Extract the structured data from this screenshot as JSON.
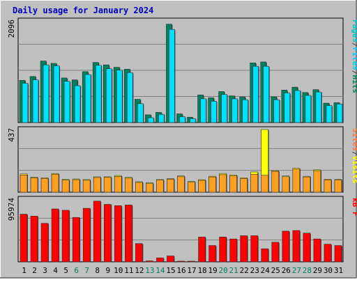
{
  "chart_data": [
    {
      "type": "bar",
      "title": "Daily usage for January 2024",
      "categories": [
        "1",
        "2",
        "3",
        "4",
        "5",
        "6",
        "7",
        "8",
        "9",
        "10",
        "11",
        "12",
        "13",
        "14",
        "15",
        "16",
        "17",
        "18",
        "19",
        "20",
        "21",
        "22",
        "23",
        "24",
        "25",
        "26",
        "27",
        "28",
        "29",
        "30",
        "31"
      ],
      "weekend_days": [
        "6",
        "7",
        "13",
        "14",
        "20",
        "21",
        "27",
        "28"
      ],
      "ymax_label": "2096",
      "ylim": [
        0,
        2096
      ],
      "series": [
        {
          "name": "Hits",
          "color": "#00805c",
          "values": [
            870,
            950,
            1270,
            1220,
            920,
            880,
            1050,
            1240,
            1190,
            1140,
            1100,
            480,
            160,
            210,
            2030,
            180,
            110,
            570,
            510,
            640,
            550,
            530,
            1230,
            1250,
            530,
            670,
            730,
            620,
            680,
            400,
            410
          ]
        },
        {
          "name": "Files",
          "color": "#00e0ff",
          "values": [
            810,
            880,
            1190,
            1170,
            850,
            760,
            990,
            1180,
            1110,
            1080,
            1030,
            390,
            100,
            170,
            1920,
            120,
            80,
            490,
            440,
            580,
            490,
            470,
            1160,
            1160,
            470,
            610,
            660,
            560,
            630,
            350,
            380
          ]
        }
      ],
      "legend_right": [
        "Pages",
        "/",
        "Files",
        "/",
        "Hits"
      ],
      "legend_colors": [
        "#00c8c8",
        "#404040",
        "#00d0f8",
        "#404040",
        "#00805c"
      ]
    },
    {
      "type": "bar",
      "categories": [
        "1",
        "2",
        "3",
        "4",
        "5",
        "6",
        "7",
        "8",
        "9",
        "10",
        "11",
        "12",
        "13",
        "14",
        "15",
        "16",
        "17",
        "18",
        "19",
        "20",
        "21",
        "22",
        "23",
        "24",
        "25",
        "26",
        "27",
        "28",
        "29",
        "30",
        "31"
      ],
      "ymax_label": "437",
      "ylim": [
        0,
        437
      ],
      "series": [
        {
          "name": "Visits",
          "color": "#ffff00",
          "values": [
            127,
            104,
            100,
            130,
            90,
            92,
            88,
            107,
            107,
            116,
            103,
            73,
            65,
            88,
            94,
            113,
            75,
            87,
            111,
            130,
            120,
            100,
            141,
            437,
            150,
            113,
            167,
            111,
            156,
            90,
            89
          ]
        },
        {
          "name": "Sites",
          "color": "#ffa020",
          "values": [
            120,
            100,
            96,
            125,
            85,
            87,
            83,
            102,
            103,
            110,
            98,
            68,
            60,
            84,
            90,
            108,
            70,
            82,
            106,
            122,
            114,
            95,
            125,
            118,
            145,
            108,
            160,
            106,
            150,
            86,
            85
          ]
        }
      ],
      "legend_right": [
        "Sites",
        "/",
        "Visits"
      ],
      "legend_colors": [
        "#ff8040",
        "#404040",
        "#ffff00"
      ]
    },
    {
      "type": "bar",
      "categories": [
        "1",
        "2",
        "3",
        "4",
        "5",
        "6",
        "7",
        "8",
        "9",
        "10",
        "11",
        "12",
        "13",
        "14",
        "15",
        "16",
        "17",
        "18",
        "19",
        "20",
        "21",
        "22",
        "23",
        "24",
        "25",
        "26",
        "27",
        "28",
        "29",
        "30",
        "31"
      ],
      "ymax_label": "95974",
      "ylim": [
        0,
        95974
      ],
      "series": [
        {
          "name": "kB F",
          "color": "#ff0000",
          "values": [
            73000,
            70000,
            59000,
            81000,
            79000,
            68000,
            82000,
            93000,
            88000,
            86000,
            87000,
            28000,
            1500,
            6000,
            9000,
            1000,
            1000,
            38000,
            25000,
            38000,
            35000,
            40000,
            40000,
            20000,
            30000,
            47000,
            48000,
            44000,
            35000,
            27000,
            25000
          ]
        }
      ],
      "legend_right": [
        "kB F"
      ],
      "legend_colors": [
        "#ff0000"
      ]
    }
  ]
}
